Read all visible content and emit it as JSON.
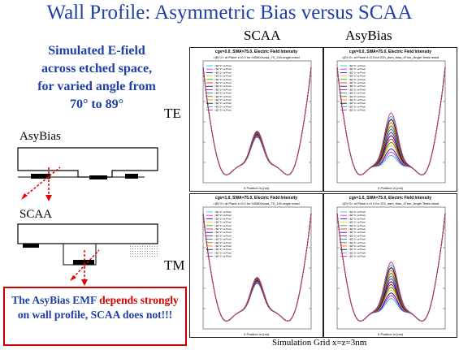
{
  "title": "Wall Profile:  Asymmetric Bias versus SCAA",
  "columns": {
    "scaa": "SCAA",
    "asybias": "AsyBias"
  },
  "rows": {
    "te": "TE",
    "tm": "TM"
  },
  "description": [
    "Simulated E-field",
    "across etched space,",
    "for varied angle from",
    "70° to 89°"
  ],
  "diagram_labels": {
    "asybias": "AsyBias",
    "scaa": "SCAA"
  },
  "note": {
    "part1": "The AsyBias EMF ",
    "red": "depends strongly",
    "part2": " on wall profile, SCAA does not!!!"
  },
  "footer": "Simulation Grid x=z=3nm",
  "colors": {
    "title": "#1f3fa8",
    "note_border": "#cc0000",
    "emphasis": "#d40000",
    "arrow": "#e00000"
  },
  "panels": [
    {
      "id": "scaa-te",
      "title": "cgv=0.0, SWA=75.0, Electric Field Intensity",
      "subtitle": "<|E|^2> at Plane z=0.0 for 040802scaa_70_140-angle.mssd",
      "xlabel": "X Position in (nm)"
    },
    {
      "id": "asy-te",
      "title": "cgv=0.0, SWA=75.0, Electric Field Intensity",
      "subtitle": "<|E|^2> at Plane z=0.0 for 220_asm_bias_47nm_Angle-Tests.mssd",
      "xlabel": "X Position in (nm)"
    },
    {
      "id": "scaa-tm",
      "title": "cgv=1.0, SWA=75.0, Electric Field Intensity",
      "subtitle": "<|E|^2> at Plane z=0.0 for 040802scaa_70_140-angle.mssd",
      "xlabel": "X Position in (nm)"
    },
    {
      "id": "asy-tm",
      "title": "cgv=1.0, SWA=75.0, Electric Field Intensity",
      "subtitle": "<|E|^2> at Plane z=0.0 for 220_asm_bias_47nm_Angle-Tests.mssd",
      "xlabel": "X Position in (nm)"
    }
  ],
  "legend_entry": "<|E|^2> at Pixel",
  "series_colors": [
    "#00cccc",
    "#ff00ff",
    "#0000ff",
    "#ffcc00",
    "#00aa00",
    "#ff0000",
    "#000080",
    "#990099",
    "#008888",
    "#666600",
    "#ff6600",
    "#000000",
    "#3399ff",
    "#cc3366"
  ]
}
